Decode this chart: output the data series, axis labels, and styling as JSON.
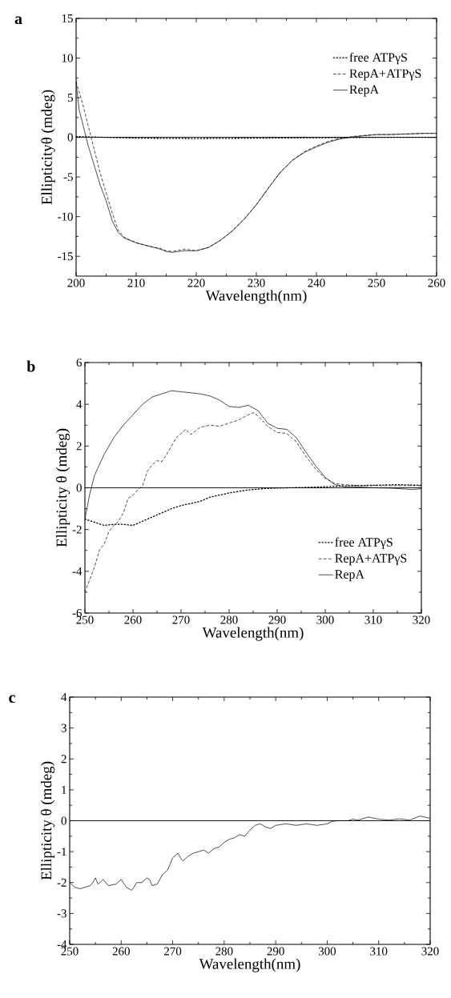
{
  "chart_data": [
    {
      "type": "line",
      "title": "a",
      "xlabel": "Wavelength(nm)",
      "ylabel": "Ellipticityθ (mdeg)",
      "xlim": [
        200,
        260
      ],
      "ylim": [
        -17.5,
        15
      ],
      "xticks": [
        200,
        210,
        220,
        230,
        240,
        250,
        260
      ],
      "yticks": [
        -15,
        -10,
        -5,
        0,
        5,
        10,
        15
      ],
      "legend": "top right",
      "ref_lines": [
        {
          "axis": "y",
          "value": 0,
          "color": "#000000",
          "line_style": "solid"
        }
      ],
      "series": [
        {
          "name": "free ATPγS",
          "color": "#000000",
          "line_style": "dotted",
          "x": [
            200,
            205,
            210,
            220,
            230,
            240,
            250,
            260
          ],
          "values": [
            0.1,
            0,
            -0.1,
            -0.15,
            -0.1,
            -0.05,
            0,
            0
          ]
        },
        {
          "name": "RepA+ATPγS",
          "color": "#000000",
          "line_style": "dashed",
          "x": [
            200,
            201,
            202,
            203,
            204,
            205,
            206,
            207,
            208,
            210,
            212,
            214,
            215,
            216,
            218,
            220,
            222,
            224,
            226,
            228,
            230,
            232,
            234,
            236,
            238,
            240,
            242,
            244,
            246,
            248,
            250,
            252,
            254,
            256,
            258,
            260
          ],
          "values": [
            7,
            4.5,
            1.5,
            -1.5,
            -4.5,
            -7,
            -9.5,
            -11.7,
            -12.6,
            -13.3,
            -13.7,
            -14.0,
            -14.3,
            -14.4,
            -14.1,
            -14.3,
            -13.9,
            -13.0,
            -11.8,
            -10.3,
            -8.5,
            -6.4,
            -4.4,
            -2.9,
            -1.8,
            -1.1,
            -0.5,
            -0.1,
            0.1,
            0.25,
            0.35,
            0.35,
            0.4,
            0.45,
            0.5,
            0.5
          ]
        },
        {
          "name": "RepA",
          "color": "#000000",
          "line_style": "solid",
          "x": [
            200,
            200.5,
            201,
            202,
            203,
            204,
            205,
            206,
            207,
            208,
            210,
            212,
            214,
            215,
            216,
            218,
            220,
            222,
            224,
            226,
            228,
            230,
            232,
            234,
            236,
            238,
            240,
            242,
            244,
            246,
            248,
            250,
            252,
            254,
            256,
            258,
            260
          ],
          "values": [
            7,
            3.5,
            2,
            -1,
            -3.5,
            -6,
            -8,
            -10.5,
            -12,
            -12.7,
            -13.3,
            -13.7,
            -14.1,
            -14.4,
            -14.5,
            -14.3,
            -14.3,
            -13.9,
            -13.0,
            -11.8,
            -10.3,
            -8.5,
            -6.4,
            -4.4,
            -2.9,
            -1.9,
            -1.2,
            -0.6,
            -0.2,
            0.05,
            0.2,
            0.35,
            0.35,
            0.4,
            0.45,
            0.5,
            0.5
          ]
        }
      ]
    },
    {
      "type": "line",
      "title": "b",
      "xlabel": "Wavelength(nm)",
      "ylabel": "Ellipticity θ (mdeg)",
      "xlim": [
        250,
        320
      ],
      "ylim": [
        -6,
        6
      ],
      "xticks": [
        250,
        260,
        270,
        280,
        290,
        300,
        310,
        320
      ],
      "yticks": [
        -6,
        -4,
        -2,
        0,
        2,
        4,
        6
      ],
      "legend": "bottom right",
      "ref_lines": [
        {
          "axis": "y",
          "value": 0,
          "color": "#000000",
          "line_style": "solid"
        }
      ],
      "series": [
        {
          "name": "free ATPγS",
          "color": "#000000",
          "line_style": "dotted",
          "x": [
            250,
            252,
            254,
            256,
            258,
            260,
            262,
            264,
            266,
            268,
            270,
            274,
            276,
            280,
            284,
            288,
            292,
            296,
            300,
            305,
            310,
            315,
            320
          ],
          "values": [
            -1.5,
            -1.65,
            -1.8,
            -1.75,
            -1.75,
            -1.8,
            -1.6,
            -1.4,
            -1.2,
            -1.0,
            -0.85,
            -0.65,
            -0.45,
            -0.25,
            -0.1,
            -0.03,
            0.0,
            0.02,
            0.05,
            0.1,
            0.12,
            0.15,
            0.12
          ]
        },
        {
          "name": "RepA+ATPγS",
          "color": "#000000",
          "line_style": "dashed",
          "x": [
            250,
            251,
            252,
            253,
            254,
            255,
            256,
            257,
            258,
            259,
            260,
            261,
            262,
            263,
            264,
            265,
            266,
            267,
            268,
            269,
            270,
            271,
            272,
            274,
            276,
            278,
            280,
            282,
            284,
            285,
            286,
            288,
            290,
            292,
            294,
            296,
            298,
            300,
            302,
            304,
            308,
            312,
            316,
            320
          ],
          "values": [
            -5.0,
            -4.4,
            -3.8,
            -3.0,
            -2.7,
            -2.1,
            -1.8,
            -1.6,
            -1.2,
            -0.5,
            -0.35,
            -0.1,
            0.1,
            0.8,
            1.1,
            1.3,
            1.25,
            1.6,
            2.0,
            2.4,
            2.6,
            2.8,
            2.55,
            2.9,
            3.0,
            2.95,
            3.1,
            3.25,
            3.5,
            3.6,
            3.45,
            2.95,
            2.65,
            2.6,
            2.2,
            1.5,
            0.9,
            0.45,
            0.2,
            0.15,
            0.1,
            0.1,
            0.1,
            0.1
          ]
        },
        {
          "name": "RepA",
          "color": "#000000",
          "line_style": "solid",
          "x": [
            250,
            251,
            252,
            254,
            256,
            258,
            260,
            262,
            264,
            266,
            268,
            270,
            272,
            274,
            276,
            278,
            280,
            282,
            284,
            286,
            288,
            290,
            292,
            294,
            296,
            298,
            300,
            302,
            304,
            306,
            310,
            314,
            318,
            320
          ],
          "values": [
            -1.5,
            -0.3,
            0.6,
            1.6,
            2.4,
            3.0,
            3.5,
            4.0,
            4.35,
            4.5,
            4.65,
            4.6,
            4.55,
            4.5,
            4.4,
            4.2,
            3.9,
            3.85,
            3.95,
            3.7,
            3.1,
            2.85,
            2.8,
            2.4,
            1.7,
            1.05,
            0.5,
            0.15,
            0.05,
            0.05,
            0.0,
            -0.02,
            -0.08,
            -0.05
          ]
        }
      ]
    },
    {
      "type": "line",
      "title": "c",
      "xlabel": "Wavelength(nm)",
      "ylabel": "Ellipticity θ (mdeg)",
      "xlim": [
        250,
        320
      ],
      "ylim": [
        -4,
        4
      ],
      "xticks": [
        250,
        260,
        270,
        280,
        290,
        300,
        310,
        320
      ],
      "yticks": [
        -4,
        -3,
        -2,
        -1,
        0,
        1,
        2,
        3,
        4
      ],
      "ref_lines": [
        {
          "axis": "y",
          "value": 0,
          "color": "#000000",
          "line_style": "solid"
        }
      ],
      "series": [
        {
          "color": "#000000",
          "line_style": "solid",
          "x": [
            250,
            251,
            252,
            253,
            254,
            254.5,
            255,
            255.5,
            256.5,
            257.5,
            259,
            260,
            261,
            262,
            262.5,
            263,
            264,
            265,
            265.5,
            266,
            267,
            268,
            269,
            270,
            271,
            271.5,
            272,
            273,
            274,
            275,
            276,
            277,
            278,
            279,
            280,
            281,
            282,
            283,
            284,
            285,
            286,
            287,
            288,
            289,
            290,
            292,
            294,
            296,
            298,
            300,
            301,
            302,
            304,
            305,
            306,
            308,
            310,
            312,
            314,
            316,
            318,
            320
          ],
          "values": [
            -2.0,
            -2.15,
            -2.2,
            -2.15,
            -2.1,
            -2.0,
            -1.85,
            -2.05,
            -1.9,
            -2.1,
            -2.05,
            -1.9,
            -2.15,
            -2.25,
            -2.15,
            -2.0,
            -2.0,
            -1.85,
            -1.9,
            -2.1,
            -2.05,
            -1.75,
            -1.6,
            -1.2,
            -1.05,
            -1.2,
            -1.3,
            -1.15,
            -1.05,
            -1.0,
            -0.95,
            -1.05,
            -0.9,
            -0.85,
            -0.7,
            -0.6,
            -0.55,
            -0.45,
            -0.5,
            -0.3,
            -0.15,
            -0.1,
            -0.2,
            -0.25,
            -0.15,
            -0.1,
            -0.15,
            -0.1,
            -0.15,
            -0.1,
            -0.02,
            0.0,
            0.0,
            0.05,
            0.02,
            0.12,
            0.05,
            0.02,
            0.06,
            0.02,
            0.15,
            0.08
          ]
        }
      ]
    }
  ]
}
